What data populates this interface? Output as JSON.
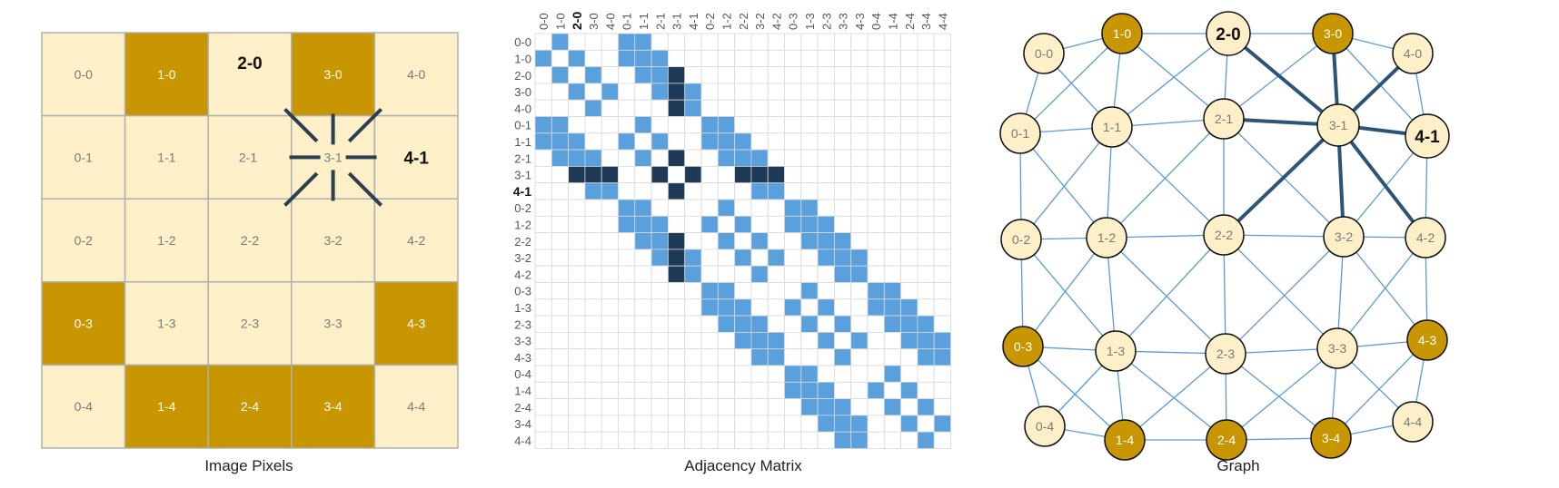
{
  "captions": {
    "pixels": "Image Pixels",
    "matrix": "Adjacency Matrix",
    "graph": "Graph"
  },
  "colors": {
    "light_fill": "#fdf0c8",
    "dark_fill": "#c89600",
    "grid_line": "#b0b0b0",
    "light_text": "#7a7a7a",
    "dark_text": "#ffffff",
    "spoke": "#2c3e50",
    "matrix_adjacent": "#5aa0dc",
    "matrix_highlight": "#1f3a57",
    "matrix_grid": "#d8d8d8",
    "graph_edge": "#5a9bd4",
    "graph_edge_highlight": "#2c5478"
  },
  "grid": {
    "size": 5,
    "center": "3-1",
    "bold_labels": [
      "2-0",
      "4-1"
    ],
    "dark_pixels": [
      "1-0",
      "3-0",
      "0-3",
      "4-3",
      "1-4",
      "2-4",
      "3-4"
    ]
  },
  "matrix": {
    "labels": [
      "0-0",
      "1-0",
      "2-0",
      "3-0",
      "4-0",
      "0-1",
      "1-1",
      "2-1",
      "3-1",
      "4-1",
      "0-2",
      "1-2",
      "2-2",
      "3-2",
      "4-2",
      "0-3",
      "1-3",
      "2-3",
      "3-3",
      "4-3",
      "0-4",
      "1-4",
      "2-4",
      "3-4",
      "4-4"
    ],
    "column_bold": "2-0",
    "row_bold": "4-1",
    "highlight_node": "3-1"
  },
  "graph": {
    "nodes": [
      {
        "id": "0-0",
        "label": "0-0",
        "dark": false,
        "bold": false
      },
      {
        "id": "1-0",
        "label": "1-0",
        "dark": true,
        "bold": false
      },
      {
        "id": "2-0",
        "label": "2-0",
        "dark": false,
        "bold": true
      },
      {
        "id": "3-0",
        "label": "3-0",
        "dark": true,
        "bold": false
      },
      {
        "id": "4-0",
        "label": "4-0",
        "dark": false,
        "bold": false
      },
      {
        "id": "0-1",
        "label": "0-1",
        "dark": false,
        "bold": false
      },
      {
        "id": "1-1",
        "label": "1-1",
        "dark": false,
        "bold": false
      },
      {
        "id": "2-1",
        "label": "2-1",
        "dark": false,
        "bold": false
      },
      {
        "id": "3-1",
        "label": "3-1",
        "dark": false,
        "bold": false
      },
      {
        "id": "4-1",
        "label": "4-1",
        "dark": false,
        "bold": true
      },
      {
        "id": "0-2",
        "label": "0-2",
        "dark": false,
        "bold": false
      },
      {
        "id": "1-2",
        "label": "1-2",
        "dark": false,
        "bold": false
      },
      {
        "id": "2-2",
        "label": "2-2",
        "dark": false,
        "bold": false
      },
      {
        "id": "3-2",
        "label": "3-2",
        "dark": false,
        "bold": false
      },
      {
        "id": "4-2",
        "label": "4-2",
        "dark": false,
        "bold": false
      },
      {
        "id": "0-3",
        "label": "0-3",
        "dark": true,
        "bold": false
      },
      {
        "id": "1-3",
        "label": "1-3",
        "dark": false,
        "bold": false
      },
      {
        "id": "2-3",
        "label": "2-3",
        "dark": false,
        "bold": false
      },
      {
        "id": "3-3",
        "label": "3-3",
        "dark": false,
        "bold": false
      },
      {
        "id": "4-3",
        "label": "4-3",
        "dark": true,
        "bold": false
      },
      {
        "id": "0-4",
        "label": "0-4",
        "dark": false,
        "bold": false
      },
      {
        "id": "1-4",
        "label": "1-4",
        "dark": true,
        "bold": false
      },
      {
        "id": "2-4",
        "label": "2-4",
        "dark": true,
        "bold": false
      },
      {
        "id": "3-4",
        "label": "3-4",
        "dark": true,
        "bold": false
      },
      {
        "id": "4-4",
        "label": "4-4",
        "dark": false,
        "bold": false
      }
    ],
    "highlight_node": "3-1"
  }
}
